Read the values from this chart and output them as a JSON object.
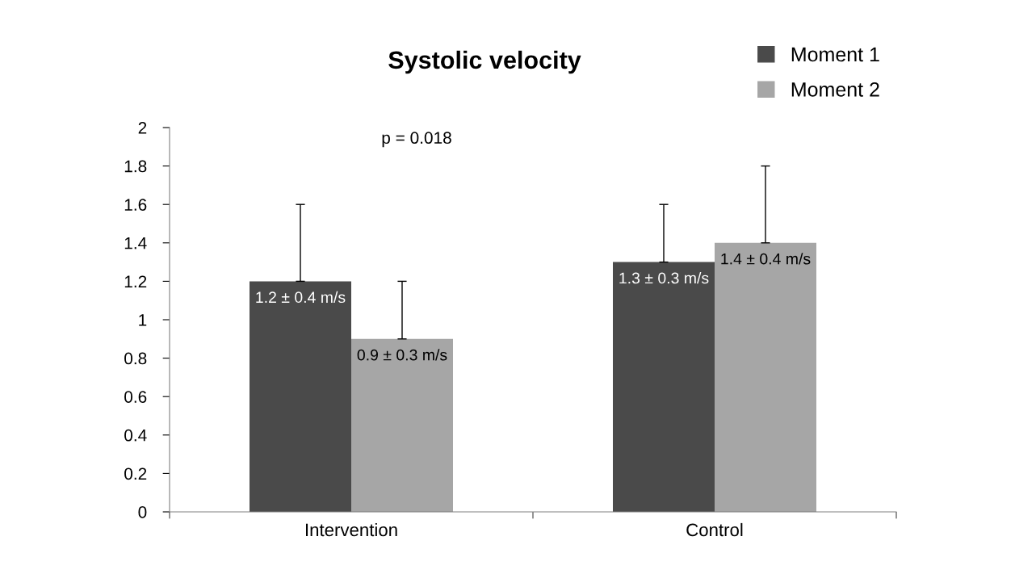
{
  "chart_data": {
    "type": "bar",
    "title": "Systolic velocity",
    "categories": [
      "Intervention",
      "Control"
    ],
    "series": [
      {
        "name": "Moment 1",
        "color": "#4a4a4a",
        "values": [
          1.2,
          1.3
        ],
        "errors": [
          [
            1.2,
            1.6
          ],
          [
            1.3,
            1.6
          ]
        ],
        "value_labels": [
          "1.2 ± 0.4 m/s",
          "1.3 ± 0.3 m/s"
        ]
      },
      {
        "name": "Moment 2",
        "color": "#a6a6a6",
        "values": [
          0.9,
          1.4
        ],
        "errors": [
          [
            0.9,
            1.2
          ],
          [
            1.4,
            1.8
          ]
        ],
        "value_labels": [
          "0.9 ± 0.3 m/s",
          "1.4 ± 0.4 m/s"
        ]
      }
    ],
    "annotations": [
      "p = 0.018"
    ],
    "ylim": [
      0,
      2
    ],
    "yticks": [
      0,
      0.2,
      0.4,
      0.6,
      0.8,
      1,
      1.2,
      1.4,
      1.6,
      1.8,
      2
    ],
    "grid": false,
    "legend": "top right"
  }
}
